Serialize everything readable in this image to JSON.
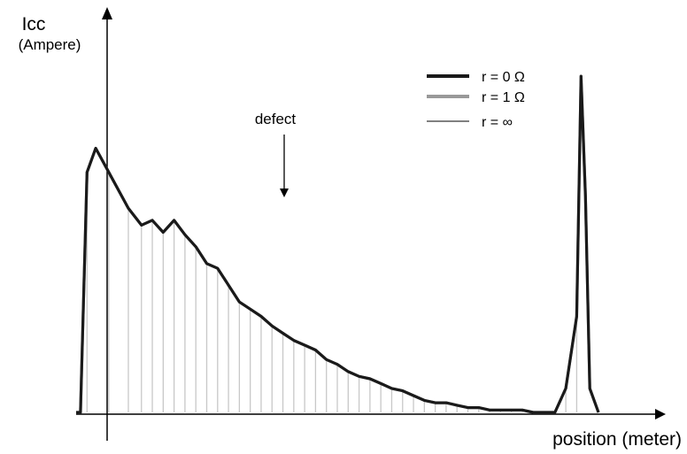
{
  "chart_data": {
    "type": "line",
    "ylabel": "Icc",
    "ylabel_unit": "(Ampere)",
    "xlabel": "position (meter)",
    "annotation": "defect",
    "legend_position": "top-right",
    "grid": "vertical lines at bump minima",
    "colors": {
      "r0": "#1a1a1a",
      "r1": "#999999",
      "rinf": "#000000",
      "grid": "#c8c8c8",
      "axis": "#000000"
    },
    "series": [
      {
        "name": "r = 0 Ω",
        "key": "r0",
        "points": [
          [
            0,
            0
          ],
          [
            0.2,
            0
          ],
          [
            0.5,
            1
          ],
          [
            0.9,
            1.1
          ],
          [
            1.5,
            1
          ],
          [
            2.4,
            0.85
          ],
          [
            3,
            0.78
          ],
          [
            3.5,
            0.8
          ],
          [
            4,
            0.75
          ],
          [
            4.5,
            0.8
          ],
          [
            5,
            0.74
          ],
          [
            5.5,
            0.69
          ],
          [
            6,
            0.62
          ],
          [
            6.5,
            0.6
          ],
          [
            7,
            0.53
          ],
          [
            7.5,
            0.46
          ],
          [
            8,
            0.43
          ],
          [
            8.5,
            0.4
          ],
          [
            9,
            0.36
          ],
          [
            9.5,
            0.33
          ],
          [
            10,
            0.3
          ],
          [
            10.5,
            0.28
          ],
          [
            11,
            0.26
          ],
          [
            11.5,
            0.22
          ],
          [
            12,
            0.2
          ],
          [
            12.5,
            0.17
          ],
          [
            13,
            0.15
          ],
          [
            13.5,
            0.14
          ],
          [
            14,
            0.12
          ],
          [
            14.5,
            0.1
          ],
          [
            15,
            0.09
          ],
          [
            15.5,
            0.07
          ],
          [
            16,
            0.05
          ],
          [
            16.5,
            0.04
          ],
          [
            17,
            0.04
          ],
          [
            17.5,
            0.03
          ],
          [
            18,
            0.02
          ],
          [
            18.5,
            0.02
          ],
          [
            19,
            0.01
          ],
          [
            19.5,
            0.01
          ],
          [
            20,
            0.01
          ],
          [
            20.5,
            0.01
          ],
          [
            21,
            0
          ],
          [
            21.5,
            0
          ],
          [
            22,
            0
          ],
          [
            22.5,
            0.1
          ],
          [
            23,
            0.4
          ],
          [
            23.2,
            1.4
          ],
          [
            23.4,
            0.9
          ],
          [
            23.6,
            0.1
          ],
          [
            24,
            0
          ]
        ]
      },
      {
        "name": "r = 1 Ω",
        "key": "r1",
        "points": [
          [
            0,
            0
          ],
          [
            0.2,
            0
          ],
          [
            0.5,
            1
          ],
          [
            0.9,
            1.1
          ],
          [
            1.5,
            1
          ],
          [
            2.4,
            0.85
          ],
          [
            3,
            0.78
          ],
          [
            3.5,
            0.8
          ],
          [
            4,
            0.75
          ],
          [
            4.5,
            0.8
          ],
          [
            5,
            0.74
          ],
          [
            5.5,
            0.69
          ],
          [
            6,
            0.62
          ],
          [
            6.5,
            0.6
          ],
          [
            7,
            0.53
          ],
          [
            7.5,
            0.46
          ],
          [
            8,
            0.43
          ],
          [
            8.5,
            0.4
          ],
          [
            9,
            0.36
          ],
          [
            9.5,
            0.33
          ],
          [
            10,
            0.3
          ],
          [
            10.5,
            0.28
          ],
          [
            11,
            0.26
          ],
          [
            11.5,
            0.22
          ],
          [
            12,
            0.2
          ],
          [
            12.5,
            0.17
          ],
          [
            13,
            0.15
          ],
          [
            13.5,
            0.14
          ],
          [
            14,
            0.12
          ],
          [
            14.5,
            0.1
          ],
          [
            15,
            0.09
          ],
          [
            15.5,
            0.07
          ],
          [
            16,
            0.05
          ],
          [
            16.5,
            0.04
          ],
          [
            17,
            0.04
          ],
          [
            17.5,
            0.03
          ],
          [
            18,
            0.02
          ],
          [
            18.5,
            0.02
          ],
          [
            19,
            0.01
          ],
          [
            19.5,
            0.01
          ],
          [
            20,
            0.01
          ],
          [
            20.5,
            0.01
          ],
          [
            21,
            0
          ],
          [
            21.5,
            0
          ],
          [
            22,
            0
          ],
          [
            22.5,
            0.1
          ],
          [
            23,
            0.4
          ],
          [
            23.2,
            1.4
          ],
          [
            23.4,
            0.9
          ],
          [
            23.6,
            0.1
          ],
          [
            24,
            0
          ]
        ]
      },
      {
        "name": "r = ∞",
        "key": "rinf",
        "points": [
          [
            0,
            0
          ],
          [
            0.2,
            0
          ],
          [
            0.5,
            1
          ],
          [
            0.9,
            1.1
          ],
          [
            1.5,
            1
          ],
          [
            2.4,
            0.85
          ],
          [
            3,
            0.78
          ],
          [
            3.5,
            0.8
          ],
          [
            4,
            0.75
          ],
          [
            4.5,
            0.8
          ],
          [
            5,
            0.74
          ],
          [
            5.5,
            0.69
          ],
          [
            6,
            0.62
          ],
          [
            6.5,
            0.6
          ],
          [
            7,
            0.53
          ],
          [
            7.5,
            0.46
          ],
          [
            8,
            0.43
          ],
          [
            8.5,
            0.4
          ],
          [
            9,
            0.36
          ],
          [
            9.5,
            0.33
          ],
          [
            10,
            0.3
          ],
          [
            10.5,
            0.28
          ],
          [
            11,
            0.26
          ],
          [
            11.5,
            0.22
          ],
          [
            12,
            0.2
          ],
          [
            12.5,
            0.17
          ],
          [
            13,
            0.15
          ],
          [
            13.5,
            0.14
          ],
          [
            14,
            0.12
          ],
          [
            14.5,
            0.1
          ],
          [
            15,
            0.09
          ],
          [
            15.5,
            0.07
          ],
          [
            16,
            0.05
          ],
          [
            16.5,
            0.04
          ],
          [
            17,
            0.04
          ],
          [
            17.5,
            0.03
          ],
          [
            18,
            0.02
          ],
          [
            18.5,
            0.02
          ],
          [
            19,
            0.01
          ],
          [
            19.5,
            0.01
          ],
          [
            20,
            0.01
          ],
          [
            20.5,
            0.01
          ],
          [
            21,
            0
          ],
          [
            21.5,
            0
          ],
          [
            22,
            0
          ],
          [
            22.5,
            0.1
          ],
          [
            23,
            0.4
          ],
          [
            23.2,
            1.4
          ],
          [
            23.4,
            0.9
          ],
          [
            23.6,
            0.1
          ],
          [
            24,
            0
          ]
        ]
      }
    ]
  }
}
